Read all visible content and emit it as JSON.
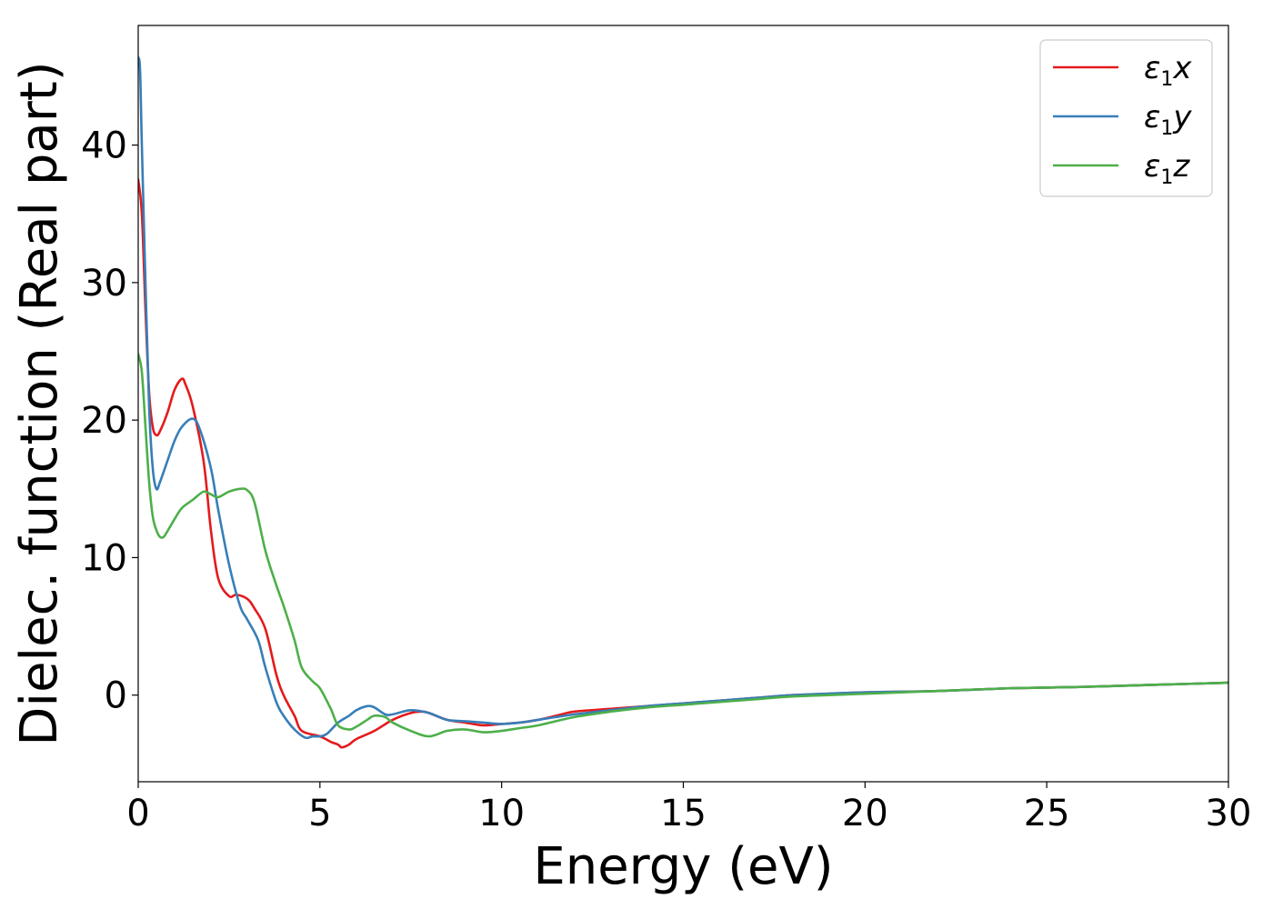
{
  "chart_data": {
    "type": "line",
    "title": "",
    "xlabel": "Energy (eV)",
    "ylabel": "Dielec. function (Real part)",
    "xlim": [
      0,
      30
    ],
    "ylim": [
      -6.3,
      48.7
    ],
    "xticks": [
      0,
      5,
      10,
      15,
      20,
      25,
      30
    ],
    "yticks": [
      0,
      10,
      20,
      30,
      40
    ],
    "grid": false,
    "legend_position": "top-right",
    "series": [
      {
        "name": "ε1x",
        "name_base": "ε",
        "name_sub": "1",
        "name_var": "x",
        "color": "#e41a1c",
        "x": [
          0,
          0.1,
          0.2,
          0.3,
          0.4,
          0.5,
          0.6,
          0.8,
          1.0,
          1.2,
          1.3,
          1.5,
          1.8,
          2.0,
          2.2,
          2.5,
          2.7,
          3.0,
          3.2,
          3.5,
          3.8,
          4.0,
          4.3,
          4.5,
          5.0,
          5.3,
          5.5,
          5.6,
          5.8,
          6.0,
          6.5,
          7.0,
          7.5,
          7.8,
          8.0,
          8.5,
          9.0,
          9.5,
          10.0,
          10.5,
          11.0,
          11.5,
          12.0,
          13.0,
          14.0,
          15.0,
          16.0,
          17.0,
          18.0,
          19.0,
          20.0,
          22.0,
          24.0,
          26.0,
          28.0,
          30.0
        ],
        "y": [
          37.5,
          35.0,
          28.0,
          22.0,
          19.5,
          18.9,
          19.2,
          20.5,
          22.2,
          23.0,
          22.6,
          21.0,
          17.0,
          12.0,
          8.5,
          7.2,
          7.3,
          7.0,
          6.3,
          4.8,
          1.5,
          0.0,
          -1.5,
          -2.6,
          -3.0,
          -3.4,
          -3.6,
          -3.8,
          -3.6,
          -3.2,
          -2.6,
          -1.8,
          -1.3,
          -1.2,
          -1.3,
          -1.8,
          -2.0,
          -2.2,
          -2.1,
          -2.0,
          -1.8,
          -1.5,
          -1.2,
          -1.0,
          -0.8,
          -0.6,
          -0.4,
          -0.2,
          0.0,
          0.1,
          0.2,
          0.3,
          0.5,
          0.6,
          0.75,
          0.9
        ]
      },
      {
        "name": "ε1y",
        "name_base": "ε",
        "name_sub": "1",
        "name_var": "y",
        "color": "#377eb8",
        "x": [
          0,
          0.05,
          0.1,
          0.2,
          0.3,
          0.4,
          0.5,
          0.6,
          0.8,
          1.0,
          1.2,
          1.5,
          1.7,
          2.0,
          2.2,
          2.5,
          2.8,
          3.0,
          3.3,
          3.5,
          3.8,
          4.0,
          4.3,
          4.6,
          4.8,
          5.0,
          5.2,
          5.5,
          5.8,
          6.0,
          6.3,
          6.5,
          6.8,
          7.0,
          7.5,
          8.0,
          8.5,
          9.0,
          9.5,
          10.0,
          10.5,
          11.0,
          12.0,
          13.0,
          14.0,
          15.0,
          16.0,
          17.0,
          18.0,
          20.0,
          22.0,
          24.0,
          26.0,
          28.0,
          30.0
        ],
        "y": [
          46.4,
          45.5,
          40.0,
          30.0,
          21.0,
          16.5,
          15.0,
          15.5,
          17.0,
          18.5,
          19.5,
          20.1,
          19.3,
          16.5,
          13.5,
          9.5,
          6.5,
          5.5,
          4.0,
          2.0,
          -0.5,
          -1.5,
          -2.5,
          -3.1,
          -3.0,
          -3.0,
          -2.8,
          -2.0,
          -1.5,
          -1.1,
          -0.8,
          -0.9,
          -1.4,
          -1.4,
          -1.1,
          -1.3,
          -1.8,
          -1.9,
          -2.0,
          -2.1,
          -2.0,
          -1.8,
          -1.4,
          -1.1,
          -0.8,
          -0.6,
          -0.4,
          -0.2,
          0.0,
          0.2,
          0.3,
          0.5,
          0.6,
          0.75,
          0.9
        ]
      },
      {
        "name": "ε1z",
        "name_base": "ε",
        "name_sub": "1",
        "name_var": "z",
        "color": "#4daf4a",
        "x": [
          0,
          0.1,
          0.2,
          0.3,
          0.4,
          0.5,
          0.6,
          0.7,
          0.8,
          1.0,
          1.2,
          1.5,
          1.8,
          2.0,
          2.2,
          2.5,
          2.8,
          3.0,
          3.2,
          3.5,
          3.8,
          4.0,
          4.3,
          4.5,
          4.8,
          5.0,
          5.3,
          5.5,
          5.8,
          6.0,
          6.3,
          6.5,
          6.8,
          7.0,
          7.5,
          8.0,
          8.5,
          9.0,
          9.5,
          10.0,
          10.5,
          11.0,
          12.0,
          13.0,
          14.0,
          15.0,
          16.0,
          17.0,
          18.0,
          20.0,
          22.0,
          24.0,
          26.0,
          28.0,
          30.0
        ],
        "y": [
          24.8,
          23.5,
          19.5,
          15.5,
          13.0,
          12.0,
          11.5,
          11.5,
          11.9,
          12.8,
          13.6,
          14.2,
          14.8,
          14.6,
          14.4,
          14.8,
          15.0,
          14.9,
          14.0,
          10.5,
          8.0,
          6.5,
          4.0,
          2.0,
          1.0,
          0.5,
          -1.0,
          -2.2,
          -2.5,
          -2.3,
          -1.8,
          -1.5,
          -1.6,
          -2.0,
          -2.6,
          -3.0,
          -2.6,
          -2.5,
          -2.7,
          -2.6,
          -2.4,
          -2.2,
          -1.6,
          -1.2,
          -0.9,
          -0.7,
          -0.5,
          -0.3,
          -0.1,
          0.1,
          0.3,
          0.5,
          0.6,
          0.75,
          0.9
        ]
      }
    ]
  }
}
